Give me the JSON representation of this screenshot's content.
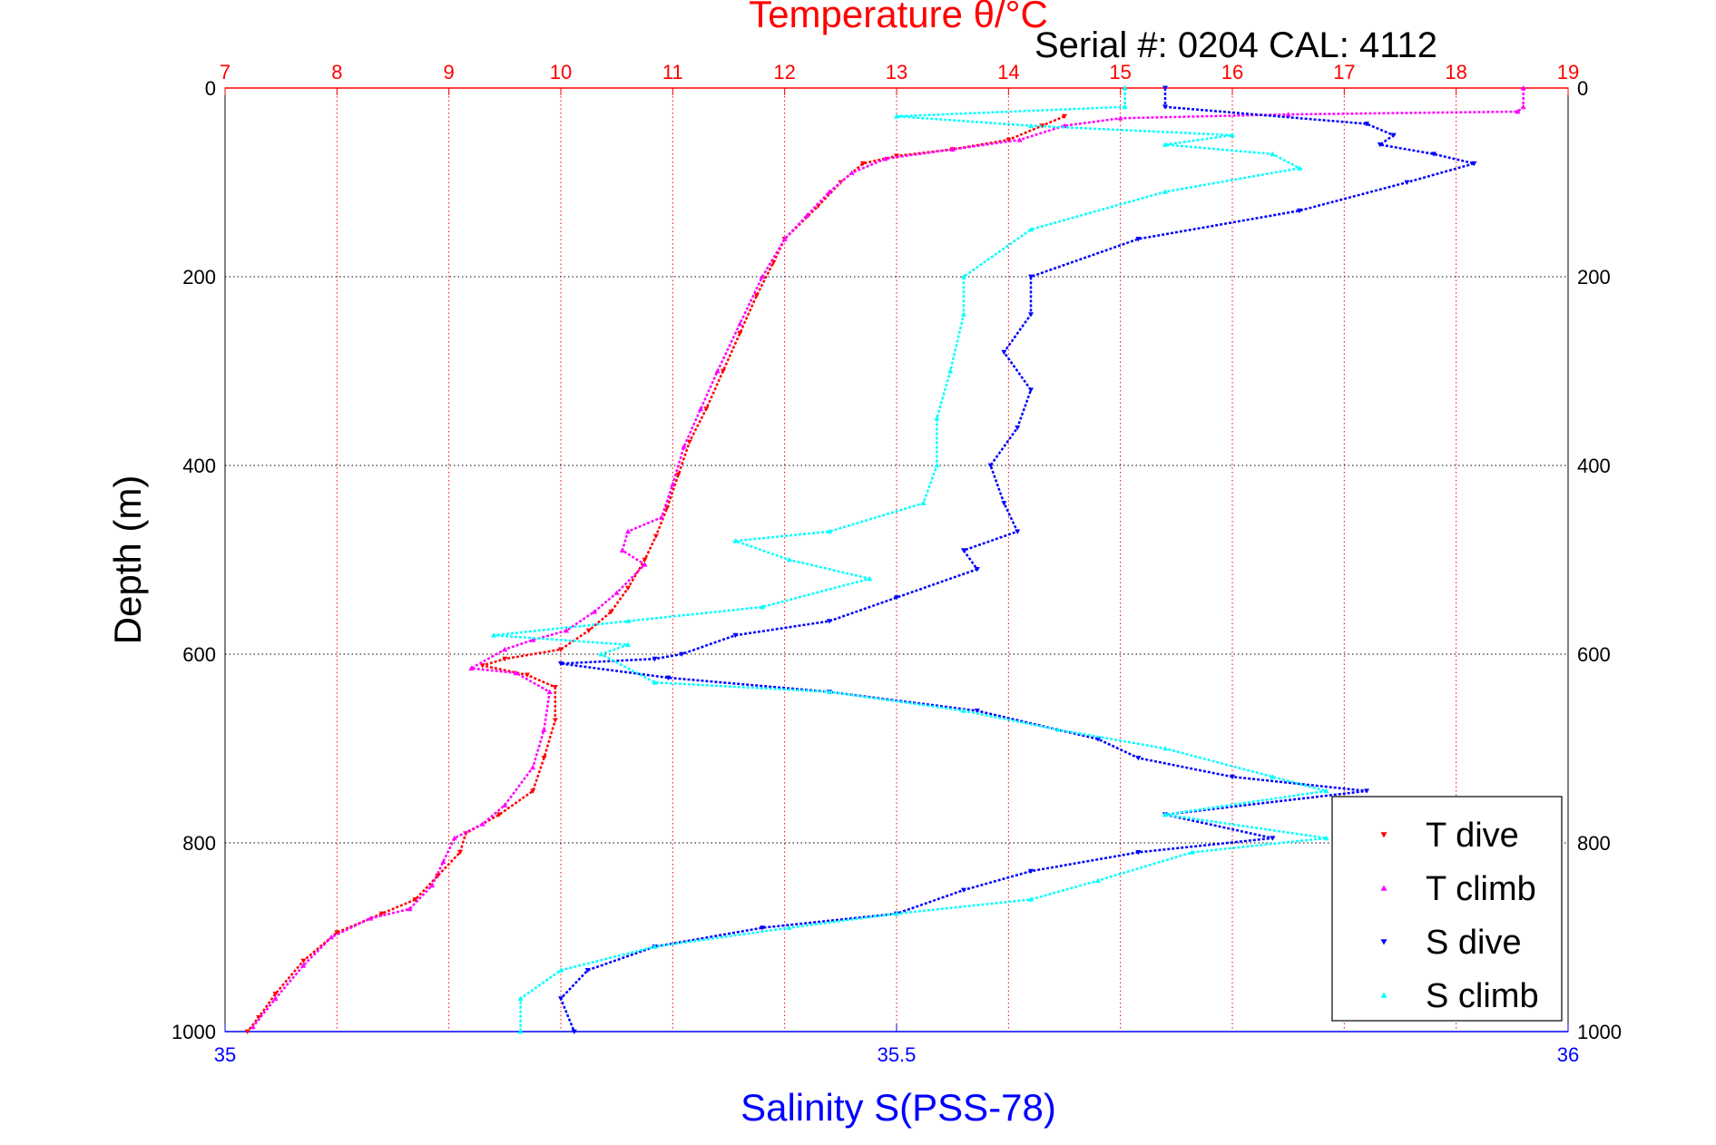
{
  "chart_data": {
    "type": "scatter",
    "title": "Temperature θ/°C",
    "subtitle": "Serial #: 0204  CAL: 4112",
    "xlabel_top": "Temperature θ/°C",
    "xlabel_bottom": "Salinity S(PSS-78)",
    "ylabel": "Depth (m)",
    "temperature_axis": {
      "range": [
        7,
        19
      ],
      "ticks": [
        "7",
        "8",
        "9",
        "10",
        "11",
        "12",
        "13",
        "14",
        "15",
        "16",
        "17",
        "18",
        "19"
      ],
      "color": "#ff0000"
    },
    "salinity_axis": {
      "range": [
        35,
        36
      ],
      "ticks": [
        "35",
        "35.5",
        "36"
      ],
      "color": "#0000ff"
    },
    "depth_axis": {
      "range": [
        0,
        1000
      ],
      "reversed": true,
      "ticks": [
        "0",
        "200",
        "400",
        "600",
        "800",
        "1000"
      ]
    },
    "grid": true,
    "legend_position": "bottom-right",
    "series": [
      {
        "name": "T dive",
        "axis": "temperature",
        "color": "#ff0000",
        "marker": "triangle-down",
        "points": [
          [
            14.5,
            30
          ],
          [
            14.3,
            40
          ],
          [
            14.0,
            55
          ],
          [
            13.5,
            65
          ],
          [
            13.0,
            72
          ],
          [
            12.7,
            80
          ],
          [
            12.5,
            100
          ],
          [
            12.3,
            125
          ],
          [
            12.0,
            160
          ],
          [
            11.9,
            185
          ],
          [
            11.75,
            220
          ],
          [
            11.6,
            260
          ],
          [
            11.45,
            300
          ],
          [
            11.3,
            340
          ],
          [
            11.15,
            375
          ],
          [
            11.05,
            410
          ],
          [
            10.95,
            445
          ],
          [
            10.85,
            475
          ],
          [
            10.75,
            500
          ],
          [
            10.6,
            530
          ],
          [
            10.45,
            555
          ],
          [
            10.25,
            575
          ],
          [
            10.0,
            595
          ],
          [
            9.5,
            605
          ],
          [
            9.3,
            612
          ],
          [
            9.7,
            622
          ],
          [
            9.95,
            635
          ],
          [
            9.95,
            670
          ],
          [
            9.85,
            710
          ],
          [
            9.75,
            745
          ],
          [
            9.45,
            770
          ],
          [
            9.15,
            790
          ],
          [
            9.1,
            810
          ],
          [
            8.9,
            835
          ],
          [
            8.7,
            860
          ],
          [
            8.4,
            875
          ],
          [
            8.0,
            895
          ],
          [
            7.7,
            925
          ],
          [
            7.45,
            960
          ],
          [
            7.3,
            985
          ],
          [
            7.2,
            1000
          ]
        ]
      },
      {
        "name": "T climb",
        "axis": "temperature",
        "color": "#ff00ff",
        "marker": "triangle-up",
        "points": [
          [
            18.6,
            0
          ],
          [
            18.6,
            20
          ],
          [
            18.55,
            25
          ],
          [
            16.5,
            28
          ],
          [
            15.0,
            32
          ],
          [
            14.5,
            40
          ],
          [
            14.1,
            55
          ],
          [
            13.5,
            65
          ],
          [
            12.9,
            75
          ],
          [
            12.6,
            90
          ],
          [
            12.4,
            110
          ],
          [
            12.2,
            135
          ],
          [
            12.0,
            160
          ],
          [
            11.8,
            200
          ],
          [
            11.6,
            250
          ],
          [
            11.4,
            300
          ],
          [
            11.25,
            340
          ],
          [
            11.1,
            380
          ],
          [
            11.0,
            420
          ],
          [
            10.9,
            455
          ],
          [
            10.6,
            470
          ],
          [
            10.55,
            490
          ],
          [
            10.75,
            505
          ],
          [
            10.5,
            535
          ],
          [
            10.3,
            555
          ],
          [
            10.05,
            575
          ],
          [
            9.75,
            585
          ],
          [
            9.5,
            595
          ],
          [
            9.2,
            615
          ],
          [
            9.6,
            620
          ],
          [
            9.9,
            640
          ],
          [
            9.85,
            680
          ],
          [
            9.75,
            720
          ],
          [
            9.5,
            760
          ],
          [
            9.3,
            780
          ],
          [
            9.05,
            795
          ],
          [
            8.95,
            820
          ],
          [
            8.85,
            845
          ],
          [
            8.65,
            870
          ],
          [
            8.3,
            880
          ],
          [
            7.95,
            900
          ],
          [
            7.7,
            930
          ],
          [
            7.45,
            965
          ],
          [
            7.25,
            995
          ]
        ]
      },
      {
        "name": "S dive",
        "axis": "salinity",
        "color": "#0000ff",
        "marker": "triangle-down",
        "points": [
          [
            35.7,
            0
          ],
          [
            35.7,
            20
          ],
          [
            35.85,
            38
          ],
          [
            35.87,
            50
          ],
          [
            35.86,
            60
          ],
          [
            35.9,
            70
          ],
          [
            35.93,
            80
          ],
          [
            35.88,
            100
          ],
          [
            35.8,
            130
          ],
          [
            35.68,
            160
          ],
          [
            35.6,
            200
          ],
          [
            35.6,
            240
          ],
          [
            35.58,
            280
          ],
          [
            35.6,
            320
          ],
          [
            35.59,
            360
          ],
          [
            35.57,
            400
          ],
          [
            35.58,
            440
          ],
          [
            35.59,
            470
          ],
          [
            35.55,
            490
          ],
          [
            35.56,
            510
          ],
          [
            35.5,
            540
          ],
          [
            35.45,
            565
          ],
          [
            35.38,
            580
          ],
          [
            35.34,
            600
          ],
          [
            35.32,
            605
          ],
          [
            35.25,
            610
          ],
          [
            35.33,
            625
          ],
          [
            35.45,
            640
          ],
          [
            35.56,
            660
          ],
          [
            35.65,
            690
          ],
          [
            35.68,
            710
          ],
          [
            35.75,
            730
          ],
          [
            35.85,
            745
          ],
          [
            35.7,
            770
          ],
          [
            35.78,
            795
          ],
          [
            35.68,
            810
          ],
          [
            35.6,
            830
          ],
          [
            35.55,
            850
          ],
          [
            35.5,
            875
          ],
          [
            35.4,
            890
          ],
          [
            35.32,
            910
          ],
          [
            35.27,
            935
          ],
          [
            35.25,
            965
          ],
          [
            35.26,
            1000
          ]
        ]
      },
      {
        "name": "S climb",
        "axis": "salinity",
        "color": "#00ffff",
        "marker": "triangle-up",
        "points": [
          [
            35.67,
            0
          ],
          [
            35.67,
            20
          ],
          [
            35.5,
            30
          ],
          [
            35.6,
            40
          ],
          [
            35.75,
            50
          ],
          [
            35.7,
            60
          ],
          [
            35.78,
            70
          ],
          [
            35.8,
            85
          ],
          [
            35.7,
            110
          ],
          [
            35.6,
            150
          ],
          [
            35.55,
            200
          ],
          [
            35.55,
            240
          ],
          [
            35.54,
            300
          ],
          [
            35.53,
            350
          ],
          [
            35.53,
            400
          ],
          [
            35.52,
            440
          ],
          [
            35.45,
            470
          ],
          [
            35.38,
            480
          ],
          [
            35.42,
            500
          ],
          [
            35.48,
            520
          ],
          [
            35.4,
            550
          ],
          [
            35.3,
            565
          ],
          [
            35.2,
            580
          ],
          [
            35.3,
            590
          ],
          [
            35.28,
            600
          ],
          [
            35.32,
            630
          ],
          [
            35.45,
            640
          ],
          [
            35.55,
            660
          ],
          [
            35.62,
            680
          ],
          [
            35.7,
            700
          ],
          [
            35.78,
            730
          ],
          [
            35.82,
            745
          ],
          [
            35.7,
            770
          ],
          [
            35.82,
            795
          ],
          [
            35.72,
            810
          ],
          [
            35.65,
            840
          ],
          [
            35.6,
            860
          ],
          [
            35.5,
            875
          ],
          [
            35.42,
            890
          ],
          [
            35.32,
            910
          ],
          [
            35.25,
            935
          ],
          [
            35.22,
            965
          ],
          [
            35.22,
            1000
          ]
        ]
      }
    ]
  }
}
